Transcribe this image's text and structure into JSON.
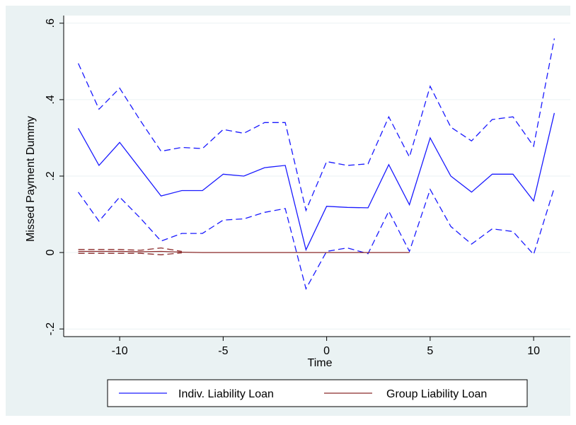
{
  "chart_data": {
    "type": "line",
    "xlabel": "Time",
    "ylabel": "Missed Payment Dummy",
    "xlim": [
      -12.5,
      11.5
    ],
    "ylim": [
      -0.22,
      0.62
    ],
    "xticks": [
      -10,
      -5,
      0,
      5,
      10
    ],
    "xtick_labels": [
      "-10",
      "-5",
      "0",
      "5",
      "10"
    ],
    "yticks": [
      -0.2,
      0,
      0.2,
      0.4,
      0.6
    ],
    "ytick_labels": [
      "-.2",
      "0",
      ".2",
      ".4",
      ".6"
    ],
    "grid": "horizontal",
    "legend_position": "bottom",
    "background_color": "#eaf2f3",
    "plot_background_color": "#ffffff",
    "series": [
      {
        "name": "Indiv. Liability Loan",
        "color": "#1a1aff",
        "style": "solid",
        "x": [
          -12,
          -11,
          -10,
          -9,
          -8,
          -7,
          -6,
          -5,
          -4,
          -3,
          -2,
          -1,
          0,
          1,
          2,
          3,
          4,
          5,
          6,
          7,
          8,
          9,
          10,
          11
        ],
        "values": [
          0.325,
          0.228,
          0.288,
          0.218,
          0.148,
          0.162,
          0.162,
          0.205,
          0.2,
          0.222,
          0.228,
          0.007,
          0.121,
          0.118,
          0.117,
          0.23,
          0.125,
          0.3,
          0.2,
          0.158,
          0.205,
          0.205,
          0.135,
          0.365
        ]
      },
      {
        "name": "",
        "color": "#1a1aff",
        "style": "dashed",
        "role": "upper confidence bound",
        "x": [
          -12,
          -11,
          -10,
          -9,
          -8,
          -7,
          -6,
          -5,
          -4,
          -3,
          -2,
          -1,
          0,
          1,
          2,
          3,
          4,
          5,
          6,
          7,
          8,
          9,
          10,
          11
        ],
        "values": [
          0.495,
          0.375,
          0.43,
          0.345,
          0.265,
          0.275,
          0.272,
          0.322,
          0.312,
          0.34,
          0.34,
          0.11,
          0.238,
          0.228,
          0.232,
          0.355,
          0.25,
          0.435,
          0.328,
          0.292,
          0.348,
          0.355,
          0.278,
          0.56
        ]
      },
      {
        "name": "",
        "color": "#1a1aff",
        "style": "dashed",
        "role": "lower confidence bound",
        "x": [
          -12,
          -11,
          -10,
          -9,
          -8,
          -7,
          -6,
          -5,
          -4,
          -3,
          -2,
          -1,
          0,
          1,
          2,
          3,
          4,
          5,
          6,
          7,
          8,
          9,
          10,
          11
        ],
        "values": [
          0.158,
          0.082,
          0.145,
          0.09,
          0.03,
          0.05,
          0.05,
          0.085,
          0.088,
          0.105,
          0.115,
          -0.095,
          0.003,
          0.012,
          -0.003,
          0.108,
          0.003,
          0.165,
          0.068,
          0.022,
          0.062,
          0.055,
          -0.005,
          0.17
        ]
      },
      {
        "name": "Group Liability Loan",
        "color": "#8b2a2a",
        "style": "solid",
        "x": [
          -12,
          -11,
          -10,
          -9,
          -8,
          -7,
          -6,
          -5,
          -4,
          -3,
          -2,
          -1,
          0,
          1,
          2,
          3,
          4
        ],
        "values": [
          0.003,
          0.003,
          0.003,
          0.002,
          0.003,
          0.001,
          0,
          0,
          0,
          0,
          0,
          0,
          0,
          0,
          0,
          0,
          0
        ]
      },
      {
        "name": "",
        "color": "#8b2a2a",
        "style": "dashed",
        "role": "upper confidence bound",
        "x": [
          -12,
          -11,
          -10,
          -9,
          -8,
          -7
        ],
        "values": [
          0.008,
          0.008,
          0.008,
          0.006,
          0.012,
          0.003
        ]
      },
      {
        "name": "",
        "color": "#8b2a2a",
        "style": "dashed",
        "role": "lower confidence bound",
        "x": [
          -12,
          -11,
          -10,
          -9,
          -8,
          -7
        ],
        "values": [
          -0.002,
          -0.002,
          -0.002,
          -0.002,
          -0.006,
          -0.001
        ]
      }
    ],
    "legend": [
      {
        "label": "Indiv. Liability Loan",
        "color": "#1a1aff"
      },
      {
        "label": "Group Liability Loan",
        "color": "#8b2a2a"
      }
    ]
  }
}
